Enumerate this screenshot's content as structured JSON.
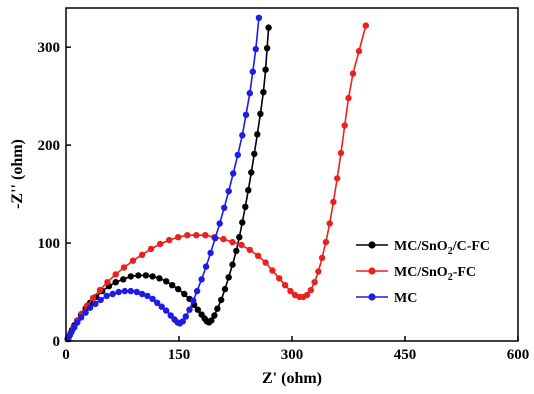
{
  "chart_data": {
    "type": "scatter",
    "xlabel": "Z' (ohm)",
    "ylabel": "-Z'' (ohm)",
    "xlim": [
      0,
      600
    ],
    "ylim": [
      0,
      340
    ],
    "xticks": [
      0,
      150,
      300,
      450,
      600
    ],
    "yticks": [
      0,
      100,
      200,
      300
    ],
    "legend_position": "center-right",
    "series": [
      {
        "name": "MC/SnO2/C-FC",
        "name_main": "MC/SnO",
        "name_sub": "2",
        "name_tail": "/C-FC",
        "color": "#000000",
        "marker": "circle",
        "connected": true,
        "points": [
          [
            3,
            2
          ],
          [
            5,
            6
          ],
          [
            8,
            11
          ],
          [
            11,
            16
          ],
          [
            15,
            21
          ],
          [
            20,
            27
          ],
          [
            26,
            33
          ],
          [
            32,
            39
          ],
          [
            40,
            45
          ],
          [
            48,
            51
          ],
          [
            57,
            56
          ],
          [
            66,
            60
          ],
          [
            76,
            63
          ],
          [
            86,
            66
          ],
          [
            96,
            67
          ],
          [
            106,
            67
          ],
          [
            115,
            66
          ],
          [
            124,
            64
          ],
          [
            133,
            61
          ],
          [
            141,
            57
          ],
          [
            149,
            53
          ],
          [
            157,
            48
          ],
          [
            164,
            43
          ],
          [
            170,
            37
          ],
          [
            175,
            32
          ],
          [
            180,
            27
          ],
          [
            184,
            23
          ],
          [
            187,
            20
          ],
          [
            190,
            19
          ],
          [
            193,
            21
          ],
          [
            197,
            26
          ],
          [
            201,
            33
          ],
          [
            206,
            42
          ],
          [
            211,
            53
          ],
          [
            216,
            65
          ],
          [
            221,
            78
          ],
          [
            226,
            92
          ],
          [
            230,
            106
          ],
          [
            234,
            121
          ],
          [
            238,
            137
          ],
          [
            242,
            154
          ],
          [
            246,
            172
          ],
          [
            250,
            191
          ],
          [
            254,
            211
          ],
          [
            258,
            232
          ],
          [
            262,
            254
          ],
          [
            265,
            277
          ],
          [
            267,
            299
          ],
          [
            269,
            320
          ]
        ]
      },
      {
        "name": "MC/SnO2-FC",
        "name_main": "MC/SnO",
        "name_sub": "2",
        "name_tail": "-FC",
        "color": "#e8221e",
        "marker": "circle",
        "connected": true,
        "points": [
          [
            3,
            3
          ],
          [
            6,
            8
          ],
          [
            10,
            14
          ],
          [
            15,
            21
          ],
          [
            21,
            28
          ],
          [
            28,
            36
          ],
          [
            36,
            44
          ],
          [
            45,
            52
          ],
          [
            55,
            60
          ],
          [
            66,
            68
          ],
          [
            77,
            75
          ],
          [
            89,
            82
          ],
          [
            101,
            88
          ],
          [
            113,
            94
          ],
          [
            125,
            99
          ],
          [
            137,
            103
          ],
          [
            149,
            106
          ],
          [
            161,
            108
          ],
          [
            173,
            108
          ],
          [
            185,
            108
          ],
          [
            197,
            106
          ],
          [
            209,
            104
          ],
          [
            221,
            101
          ],
          [
            233,
            98
          ],
          [
            244,
            93
          ],
          [
            255,
            87
          ],
          [
            265,
            80
          ],
          [
            274,
            72
          ],
          [
            283,
            64
          ],
          [
            291,
            57
          ],
          [
            298,
            51
          ],
          [
            304,
            47
          ],
          [
            310,
            45
          ],
          [
            315,
            45
          ],
          [
            320,
            47
          ],
          [
            325,
            52
          ],
          [
            330,
            60
          ],
          [
            335,
            71
          ],
          [
            340,
            85
          ],
          [
            345,
            101
          ],
          [
            350,
            120
          ],
          [
            355,
            142
          ],
          [
            360,
            166
          ],
          [
            365,
            192
          ],
          [
            370,
            220
          ],
          [
            375,
            248
          ],
          [
            381,
            273
          ],
          [
            389,
            296
          ],
          [
            398,
            322
          ]
        ]
      },
      {
        "name": "MC",
        "color": "#1c1ce8",
        "marker": "circle",
        "connected": true,
        "points": [
          [
            2,
            2
          ],
          [
            4,
            5
          ],
          [
            7,
            9
          ],
          [
            11,
            14
          ],
          [
            15,
            19
          ],
          [
            20,
            24
          ],
          [
            26,
            29
          ],
          [
            32,
            34
          ],
          [
            39,
            38
          ],
          [
            46,
            42
          ],
          [
            54,
            46
          ],
          [
            62,
            48
          ],
          [
            70,
            50
          ],
          [
            78,
            51
          ],
          [
            86,
            51
          ],
          [
            94,
            50
          ],
          [
            101,
            48
          ],
          [
            108,
            46
          ],
          [
            115,
            43
          ],
          [
            121,
            39
          ],
          [
            127,
            35
          ],
          [
            133,
            31
          ],
          [
            139,
            26
          ],
          [
            144,
            22
          ],
          [
            148,
            19
          ],
          [
            151,
            18
          ],
          [
            155,
            20
          ],
          [
            159,
            25
          ],
          [
            164,
            32
          ],
          [
            169,
            41
          ],
          [
            174,
            51
          ],
          [
            180,
            63
          ],
          [
            186,
            76
          ],
          [
            192,
            90
          ],
          [
            198,
            105
          ],
          [
            204,
            120
          ],
          [
            210,
            136
          ],
          [
            216,
            153
          ],
          [
            222,
            171
          ],
          [
            228,
            190
          ],
          [
            234,
            210
          ],
          [
            239,
            231
          ],
          [
            244,
            253
          ],
          [
            248,
            275
          ],
          [
            252,
            298
          ],
          [
            256,
            330
          ]
        ]
      }
    ]
  }
}
